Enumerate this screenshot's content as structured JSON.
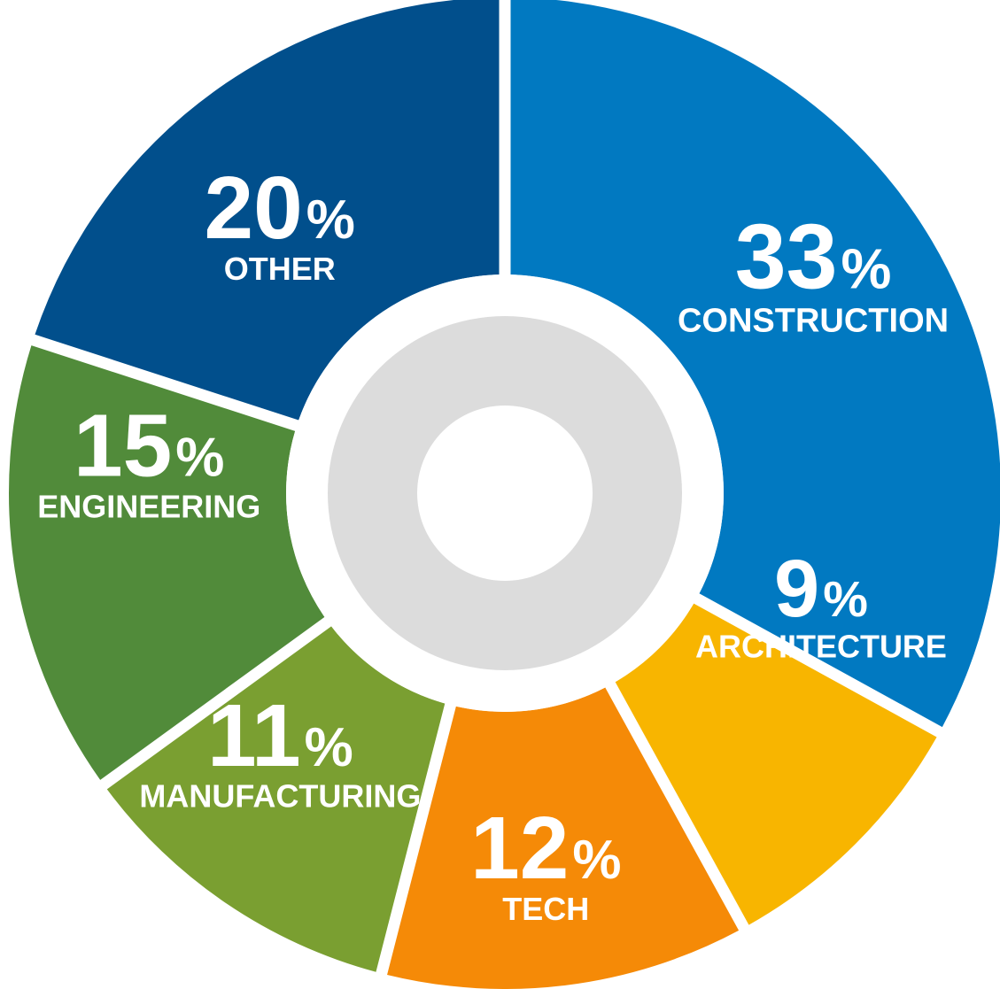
{
  "chart_data": {
    "type": "pie",
    "title": "",
    "categories": [
      "CONSTRUCTION",
      "ARCHITECTURE",
      "TECH",
      "MANUFACTURING",
      "ENGINEERING",
      "OTHER"
    ],
    "values": [
      33,
      9,
      12,
      11,
      15,
      20
    ],
    "percent_labels": [
      "33",
      "9",
      "12",
      "11",
      "15",
      "20"
    ],
    "percent_sign": "%",
    "colors": [
      "#0179c1",
      "#f8b500",
      "#f58a07",
      "#7a9f31",
      "#518b3a",
      "#014f8c"
    ],
    "center_ring_color": "#dcdcdc",
    "background_color": "#ffffff"
  }
}
